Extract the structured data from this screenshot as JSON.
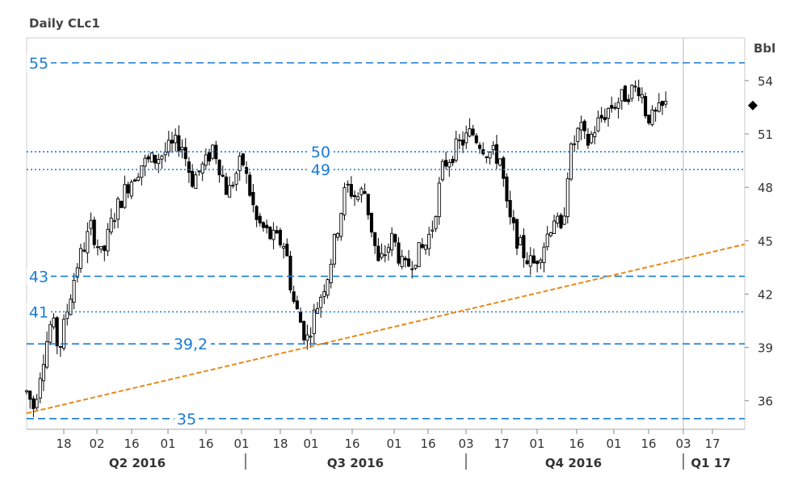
{
  "chart_data": {
    "type": "candlestick",
    "title": "Daily CLc1",
    "ylabel": "Bbl",
    "ylim": [
      34.4,
      56.4
    ],
    "yticks": [
      36,
      39,
      42,
      45,
      48,
      51,
      54
    ],
    "ytick_labels": [
      "36",
      "39",
      "42",
      "45",
      "48",
      "51",
      "54"
    ],
    "xticks": [
      {
        "label": "18"
      },
      {
        "label": "02"
      },
      {
        "label": "16"
      },
      {
        "label": "01"
      },
      {
        "label": "16"
      },
      {
        "label": "01"
      },
      {
        "label": "18"
      },
      {
        "label": "01"
      },
      {
        "label": "16"
      },
      {
        "label": "01"
      },
      {
        "label": "16"
      },
      {
        "label": "03"
      },
      {
        "label": "17"
      },
      {
        "label": "01"
      },
      {
        "label": "16"
      },
      {
        "label": "01"
      },
      {
        "label": "16"
      },
      {
        "label": "03"
      },
      {
        "label": "17"
      }
    ],
    "periods": [
      {
        "label": "Q2 2016"
      },
      {
        "label": "Q3 2016"
      },
      {
        "label": "Q4 2016"
      },
      {
        "label": "Q1 17"
      }
    ],
    "levels": [
      {
        "value": 55,
        "label": "55",
        "style": "dashed"
      },
      {
        "value": 50,
        "label": "50",
        "style": "dotted"
      },
      {
        "value": 49,
        "label": "49",
        "style": "dotted"
      },
      {
        "value": 43,
        "label": "43",
        "style": "dashed"
      },
      {
        "value": 41,
        "label": "41",
        "style": "dotted"
      },
      {
        "value": 39.2,
        "label": "39,2",
        "style": "dashed"
      },
      {
        "value": 35,
        "label": "35",
        "style": "dashed"
      }
    ],
    "trendline": {
      "from": [
        0,
        35.3
      ],
      "to": [
        1,
        44.8
      ]
    },
    "last_price": 52.6,
    "anchors": [
      [
        0.0,
        36.5
      ],
      [
        0.01,
        35.6
      ],
      [
        0.02,
        37.9
      ],
      [
        0.035,
        40.6
      ],
      [
        0.045,
        38.8
      ],
      [
        0.06,
        41.8
      ],
      [
        0.07,
        43.6
      ],
      [
        0.09,
        45.8
      ],
      [
        0.105,
        44.0
      ],
      [
        0.12,
        46.3
      ],
      [
        0.14,
        48.1
      ],
      [
        0.16,
        49.3
      ],
      [
        0.18,
        49.6
      ],
      [
        0.2,
        50.2
      ],
      [
        0.215,
        50.6
      ],
      [
        0.23,
        48.4
      ],
      [
        0.25,
        49.4
      ],
      [
        0.26,
        50.4
      ],
      [
        0.28,
        47.6
      ],
      [
        0.3,
        49.6
      ],
      [
        0.32,
        46.1
      ],
      [
        0.34,
        45.2
      ],
      [
        0.36,
        44.8
      ],
      [
        0.37,
        41.8
      ],
      [
        0.39,
        39.4
      ],
      [
        0.4,
        40.8
      ],
      [
        0.42,
        43.2
      ],
      [
        0.445,
        48.1
      ],
      [
        0.46,
        47.4
      ],
      [
        0.47,
        47.9
      ],
      [
        0.49,
        43.6
      ],
      [
        0.51,
        45.2
      ],
      [
        0.525,
        43.3
      ],
      [
        0.54,
        44.1
      ],
      [
        0.555,
        44.7
      ],
      [
        0.565,
        45.8
      ],
      [
        0.58,
        49.2
      ],
      [
        0.6,
        50.3
      ],
      [
        0.62,
        51.1
      ],
      [
        0.64,
        50.1
      ],
      [
        0.66,
        49.6
      ],
      [
        0.67,
        46.4
      ],
      [
        0.69,
        44.4
      ],
      [
        0.705,
        43.6
      ],
      [
        0.72,
        44.8
      ],
      [
        0.735,
        46.4
      ],
      [
        0.745,
        45.2
      ],
      [
        0.755,
        49.6
      ],
      [
        0.77,
        51.4
      ],
      [
        0.78,
        50.4
      ],
      [
        0.795,
        51.6
      ],
      [
        0.81,
        52.4
      ],
      [
        0.825,
        52.9
      ],
      [
        0.84,
        53.4
      ],
      [
        0.855,
        53.7
      ],
      [
        0.86,
        52.4
      ],
      [
        0.87,
        51.8
      ],
      [
        0.89,
        52.6
      ]
    ]
  }
}
